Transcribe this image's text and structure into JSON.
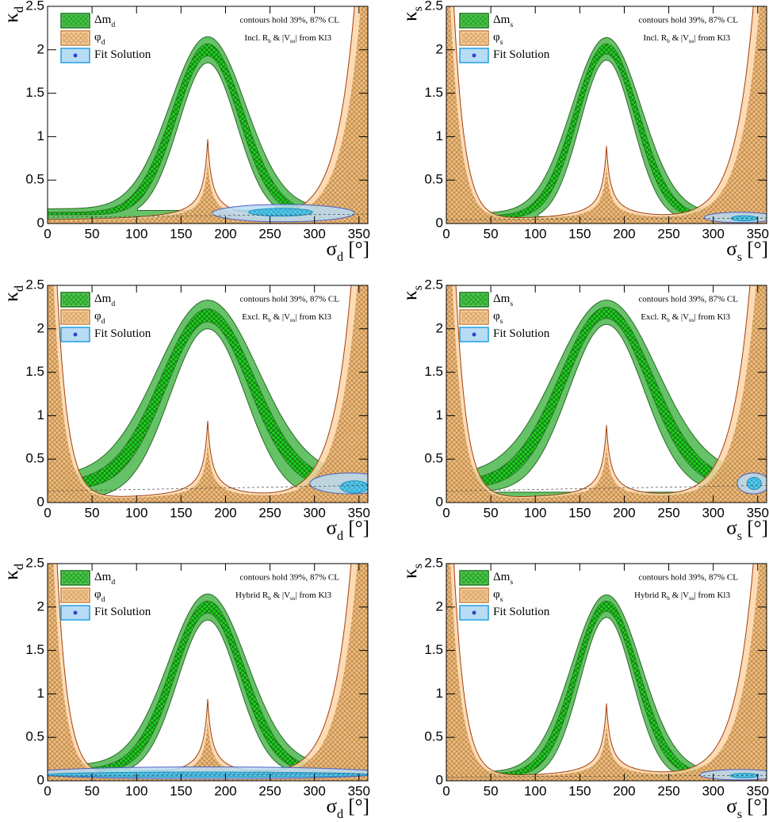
{
  "chart_data": [
    {
      "type": "contour",
      "xlabel": {
        "symbol": "σ",
        "subscript": "d",
        "unit": " [°]"
      },
      "ylabel": {
        "symbol": "κ",
        "subscript": "d"
      },
      "xlim": [
        0,
        360
      ],
      "ylim": [
        0,
        2.5
      ],
      "xticks": [
        0,
        50,
        100,
        150,
        200,
        250,
        300,
        350
      ],
      "yticks": [
        0,
        0.5,
        1,
        1.5,
        2,
        2.5
      ],
      "legend": [
        {
          "symbol": "Δm",
          "subscript": "d",
          "color": "#66c266"
        },
        {
          "symbol": "φ",
          "subscript": "d",
          "color": "#fdd5a8"
        },
        {
          "text": "Fit Solution",
          "color": "#b8dcf4"
        }
      ],
      "annotations": [
        "contours hold 39%, 87% CL",
        [
          {
            "text": "Incl. R"
          },
          {
            "text": "b",
            "sub": true
          },
          {
            "text": " & |V"
          },
          {
            "text": "us",
            "sub": true
          },
          {
            "text": "| from Kl3"
          }
        ]
      ]
    },
    {
      "type": "contour",
      "xlabel": {
        "symbol": "σ",
        "subscript": "s",
        "unit": " [°]"
      },
      "ylabel": {
        "symbol": "κ",
        "subscript": "s"
      },
      "xlim": [
        0,
        360
      ],
      "ylim": [
        0,
        2.5
      ],
      "xticks": [
        0,
        50,
        100,
        150,
        200,
        250,
        300,
        350
      ],
      "yticks": [
        0,
        0.5,
        1,
        1.5,
        2,
        2.5
      ],
      "legend": [
        {
          "symbol": "Δm",
          "subscript": "s",
          "color": "#66c266"
        },
        {
          "symbol": "φ",
          "subscript": "s",
          "color": "#fdd5a8"
        },
        {
          "text": "Fit Solution",
          "color": "#b8dcf4"
        }
      ],
      "annotations": [
        "contours hold 39%, 87% CL",
        [
          {
            "text": "Incl. R"
          },
          {
            "text": "b",
            "sub": true
          },
          {
            "text": " & |V"
          },
          {
            "text": "us",
            "sub": true
          },
          {
            "text": "| from Kl3"
          }
        ]
      ]
    },
    {
      "type": "contour",
      "xlabel": {
        "symbol": "σ",
        "subscript": "d",
        "unit": " [°]"
      },
      "ylabel": {
        "symbol": "κ",
        "subscript": "d"
      },
      "xlim": [
        0,
        360
      ],
      "ylim": [
        0,
        2.5
      ],
      "xticks": [
        0,
        50,
        100,
        150,
        200,
        250,
        300,
        350
      ],
      "yticks": [
        0,
        0.5,
        1,
        1.5,
        2,
        2.5
      ],
      "legend": [
        {
          "symbol": "Δm",
          "subscript": "d",
          "color": "#66c266"
        },
        {
          "symbol": "φ",
          "subscript": "d",
          "color": "#fdd5a8"
        },
        {
          "text": "Fit Solution",
          "color": "#b8dcf4"
        }
      ],
      "annotations": [
        "contours hold 39%, 87% CL",
        [
          {
            "text": "Excl. R"
          },
          {
            "text": "b",
            "sub": true
          },
          {
            "text": " & |V"
          },
          {
            "text": "us",
            "sub": true
          },
          {
            "text": "| from Kl3"
          }
        ]
      ]
    },
    {
      "type": "contour",
      "xlabel": {
        "symbol": "σ",
        "subscript": "s",
        "unit": " [°]"
      },
      "ylabel": {
        "symbol": "κ",
        "subscript": "s"
      },
      "xlim": [
        0,
        360
      ],
      "ylim": [
        0,
        2.5
      ],
      "xticks": [
        0,
        50,
        100,
        150,
        200,
        250,
        300,
        350
      ],
      "yticks": [
        0,
        0.5,
        1,
        1.5,
        2,
        2.5
      ],
      "legend": [
        {
          "symbol": "Δm",
          "subscript": "s",
          "color": "#66c266"
        },
        {
          "symbol": "φ",
          "subscript": "s",
          "color": "#fdd5a8"
        },
        {
          "text": "Fit Solution",
          "color": "#b8dcf4"
        }
      ],
      "annotations": [
        "contours hold 39%, 87% CL",
        [
          {
            "text": "Excl. R"
          },
          {
            "text": "b",
            "sub": true
          },
          {
            "text": " & |V"
          },
          {
            "text": "us",
            "sub": true
          },
          {
            "text": "| from Kl3"
          }
        ]
      ]
    },
    {
      "type": "contour",
      "xlabel": {
        "symbol": "σ",
        "subscript": "d",
        "unit": " [°]"
      },
      "ylabel": {
        "symbol": "κ",
        "subscript": "d"
      },
      "xlim": [
        0,
        360
      ],
      "ylim": [
        0,
        2.5
      ],
      "xticks": [
        0,
        50,
        100,
        150,
        200,
        250,
        300,
        350
      ],
      "yticks": [
        0,
        0.5,
        1,
        1.5,
        2,
        2.5
      ],
      "legend": [
        {
          "symbol": "Δm",
          "subscript": "d",
          "color": "#66c266"
        },
        {
          "symbol": "φ",
          "subscript": "d",
          "color": "#fdd5a8"
        },
        {
          "text": "Fit Solution",
          "color": "#b8dcf4"
        }
      ],
      "annotations": [
        "contours hold 39%, 87% CL",
        [
          {
            "text": "Hybrid R"
          },
          {
            "text": "b",
            "sub": true
          },
          {
            "text": " & |V"
          },
          {
            "text": "us",
            "sub": true
          },
          {
            "text": "| from Kl3"
          }
        ]
      ]
    },
    {
      "type": "contour",
      "xlabel": {
        "symbol": "σ",
        "subscript": "s",
        "unit": " [°]"
      },
      "ylabel": {
        "symbol": "κ",
        "subscript": "s"
      },
      "xlim": [
        0,
        360
      ],
      "ylim": [
        0,
        2.5
      ],
      "xticks": [
        0,
        50,
        100,
        150,
        200,
        250,
        300,
        350
      ],
      "yticks": [
        0,
        0.5,
        1,
        1.5,
        2,
        2.5
      ],
      "legend": [
        {
          "symbol": "Δm",
          "subscript": "s",
          "color": "#66c266"
        },
        {
          "symbol": "φ",
          "subscript": "s",
          "color": "#fdd5a8"
        },
        {
          "text": "Fit Solution",
          "color": "#b8dcf4"
        }
      ],
      "annotations": [
        "contours hold 39%, 87% CL",
        [
          {
            "text": "Hybrid R"
          },
          {
            "text": "b",
            "sub": true
          },
          {
            "text": " & |V"
          },
          {
            "text": "us",
            "sub": true
          },
          {
            "text": "| from Kl3"
          }
        ]
      ]
    }
  ]
}
